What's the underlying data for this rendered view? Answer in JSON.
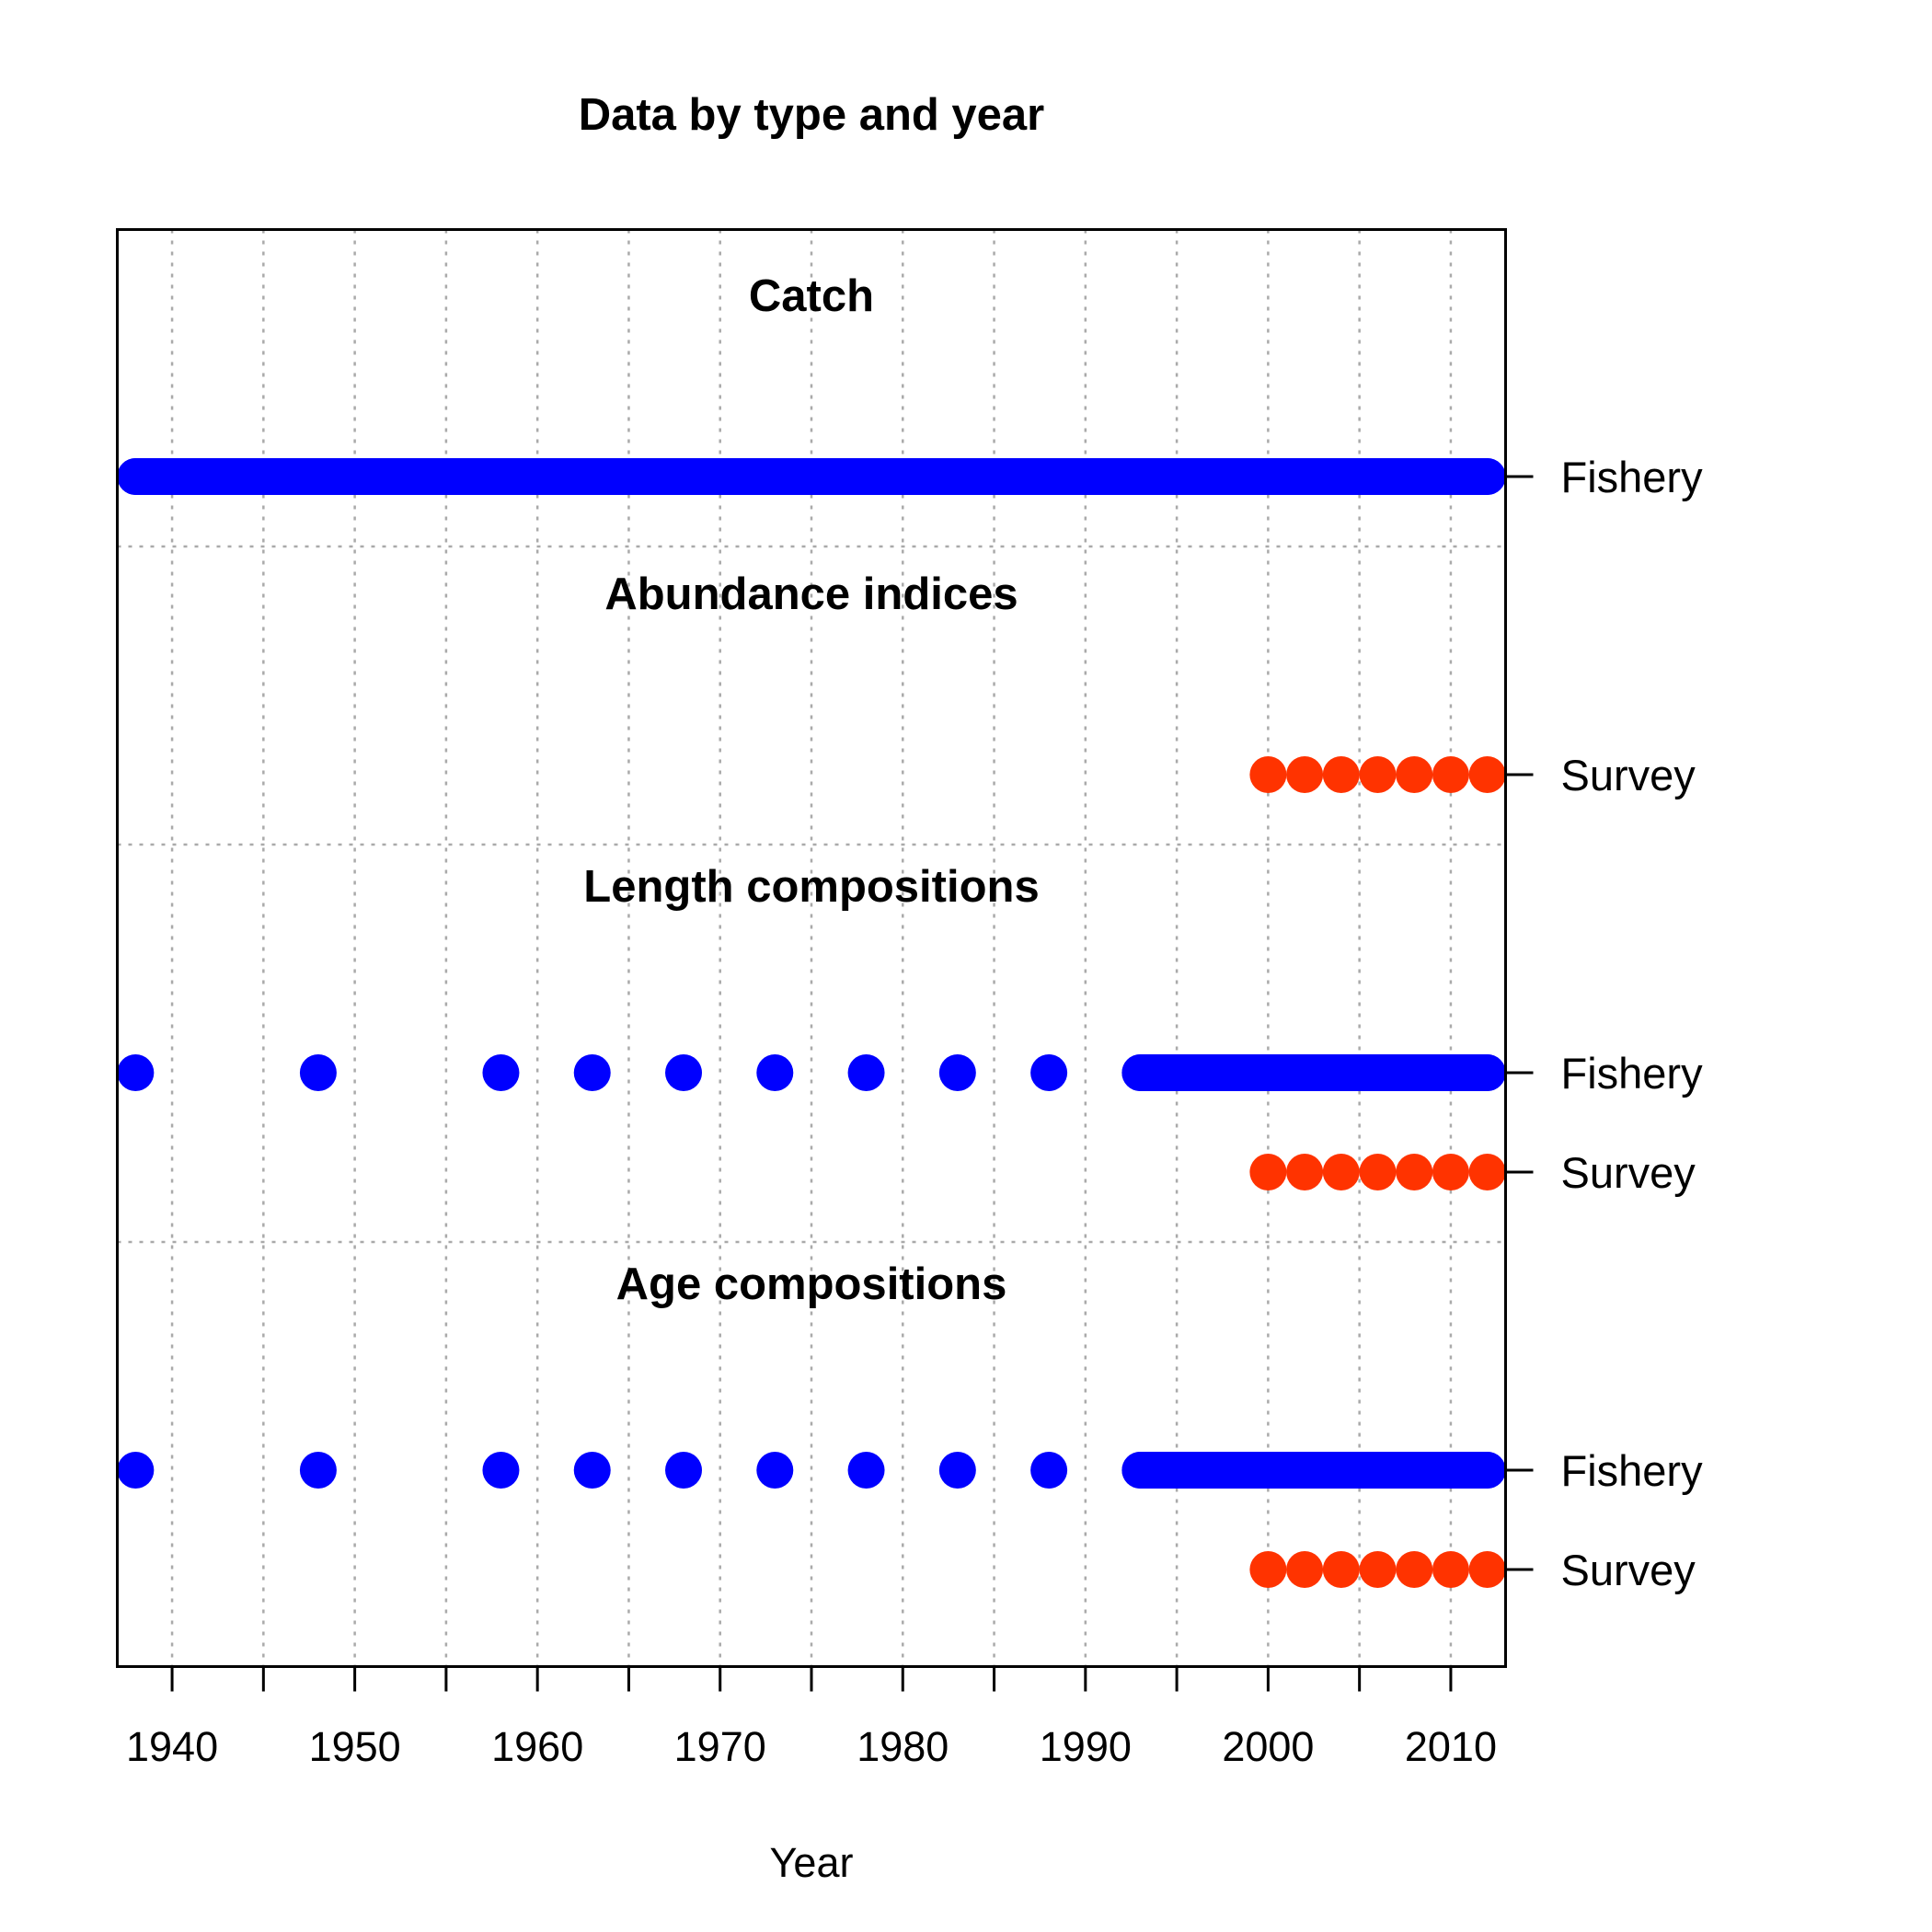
{
  "chart_data": {
    "type": "scatter",
    "title": "Data by type and year",
    "xlabel": "Year",
    "ylabel": "",
    "xlim": [
      1937,
      2013
    ],
    "x_ticks": [
      1940,
      1950,
      1960,
      1970,
      1980,
      1990,
      2000,
      2010
    ],
    "x_minor_ticks": [
      1945,
      1955,
      1965,
      1975,
      1985,
      1995,
      2005
    ],
    "grid": true,
    "colors": {
      "Fishery": "#0000FF",
      "Survey": "#FF3300"
    },
    "panels": [
      {
        "title": "Catch",
        "series": [
          {
            "name": "Fishery",
            "years": [
              1938,
              1939,
              1940,
              1941,
              1942,
              1943,
              1944,
              1945,
              1946,
              1947,
              1948,
              1949,
              1950,
              1951,
              1952,
              1953,
              1954,
              1955,
              1956,
              1957,
              1958,
              1959,
              1960,
              1961,
              1962,
              1963,
              1964,
              1965,
              1966,
              1967,
              1968,
              1969,
              1970,
              1971,
              1972,
              1973,
              1974,
              1975,
              1976,
              1977,
              1978,
              1979,
              1980,
              1981,
              1982,
              1983,
              1984,
              1985,
              1986,
              1987,
              1988,
              1989,
              1990,
              1991,
              1992,
              1993,
              1994,
              1995,
              1996,
              1997,
              1998,
              1999,
              2000,
              2001,
              2002,
              2003,
              2004,
              2005,
              2006,
              2007,
              2008,
              2009,
              2010,
              2011,
              2012
            ]
          }
        ]
      },
      {
        "title": "Abundance indices",
        "series": [
          {
            "name": "Survey",
            "years": [
              2000,
              2002,
              2004,
              2006,
              2008,
              2010,
              2012
            ]
          }
        ]
      },
      {
        "title": "Length compositions",
        "series": [
          {
            "name": "Fishery",
            "years": [
              1938,
              1948,
              1958,
              1963,
              1968,
              1973,
              1978,
              1983,
              1988,
              1993,
              1994,
              1995,
              1996,
              1997,
              1998,
              1999,
              2000,
              2001,
              2002,
              2003,
              2004,
              2005,
              2006,
              2007,
              2008,
              2009,
              2010,
              2011,
              2012
            ]
          },
          {
            "name": "Survey",
            "years": [
              2000,
              2002,
              2004,
              2006,
              2008,
              2010,
              2012
            ]
          }
        ]
      },
      {
        "title": "Age compositions",
        "series": [
          {
            "name": "Fishery",
            "years": [
              1938,
              1948,
              1958,
              1963,
              1968,
              1973,
              1978,
              1983,
              1988,
              1993,
              1994,
              1995,
              1996,
              1997,
              1998,
              1999,
              2000,
              2001,
              2002,
              2003,
              2004,
              2005,
              2006,
              2007,
              2008,
              2009,
              2010,
              2011,
              2012
            ]
          },
          {
            "name": "Survey",
            "years": [
              2000,
              2002,
              2004,
              2006,
              2008,
              2010,
              2012
            ]
          }
        ]
      }
    ]
  }
}
